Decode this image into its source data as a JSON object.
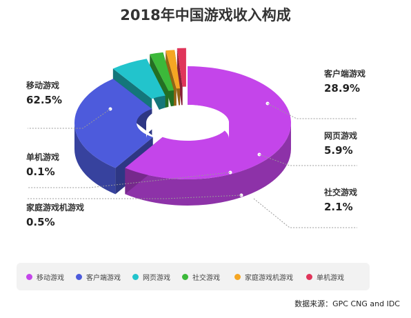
{
  "title": "2018年中国游戏收入构成",
  "source": "数据来源：GPC CNG and IDC",
  "colors": {
    "mobile": "#c445ea",
    "client": "#4d5bdc",
    "web": "#22c4cc",
    "social": "#3cb93a",
    "console": "#f5a623",
    "single": "#e0355a"
  },
  "chart_data": {
    "type": "pie",
    "title": "2018年中国游戏收入构成",
    "series": [
      {
        "name": "移动游戏",
        "value": 62.5,
        "label": "62.5%",
        "color": "#c445ea"
      },
      {
        "name": "客户端游戏",
        "value": 28.9,
        "label": "28.9%",
        "color": "#4d5bdc"
      },
      {
        "name": "网页游戏",
        "value": 5.9,
        "label": "5.9%",
        "color": "#22c4cc"
      },
      {
        "name": "社交游戏",
        "value": 2.1,
        "label": "2.1%",
        "color": "#3cb93a"
      },
      {
        "name": "家庭游戏机游戏",
        "value": 0.5,
        "label": "0.5%",
        "color": "#f5a623"
      },
      {
        "name": "单机游戏",
        "value": 0.1,
        "label": "0.1%",
        "color": "#e0355a"
      }
    ],
    "legend": [
      "移动游戏",
      "客户端游戏",
      "网页游戏",
      "社交游戏",
      "家庭游戏机游戏",
      "单机游戏"
    ],
    "legend_position": "bottom"
  }
}
